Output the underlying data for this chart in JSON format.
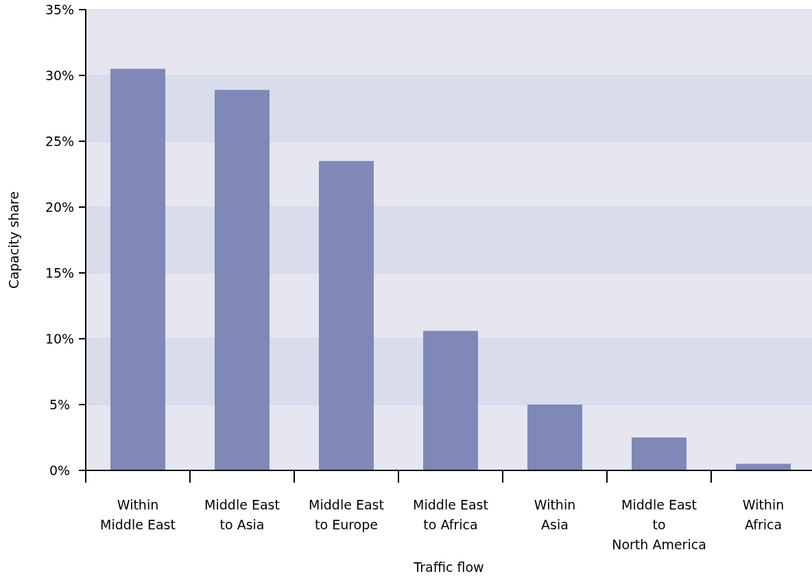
{
  "chart_data": {
    "type": "bar",
    "xlabel": "Traffic flow",
    "ylabel": "Capacity share",
    "categories": [
      "Within\nMiddle East",
      "Middle East\nto Asia",
      "Middle East\nto Europe",
      "Middle East\nto Africa",
      "Within\nAsia",
      "Middle East\nto\nNorth America",
      "Within\nAfrica"
    ],
    "values": [
      30.5,
      28.9,
      23.5,
      10.6,
      5.0,
      2.5,
      0.5
    ],
    "color": "#8088b8",
    "ylim": [
      0,
      35
    ],
    "yticks": [
      {
        "value": 0,
        "label": "0%"
      },
      {
        "value": 5,
        "label": "5%"
      },
      {
        "value": 10,
        "label": "10%"
      },
      {
        "value": 15,
        "label": "15%"
      },
      {
        "value": 20,
        "label": "20%"
      },
      {
        "value": 25,
        "label": "25%"
      },
      {
        "value": 30,
        "label": "30%"
      },
      {
        "value": 35,
        "label": "35%"
      }
    ],
    "grid": "y"
  }
}
